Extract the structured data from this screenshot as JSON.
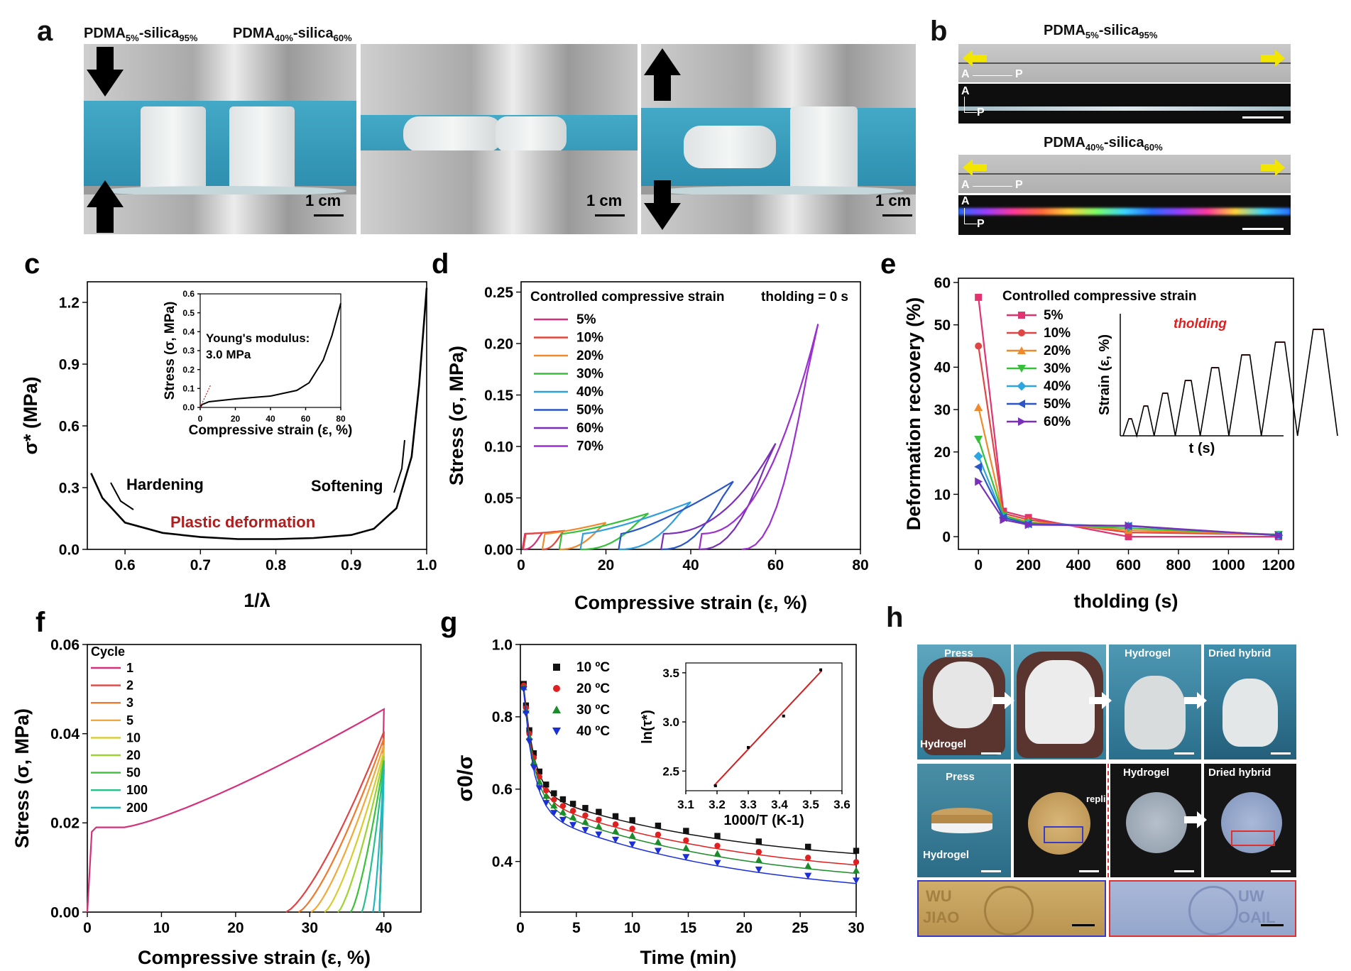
{
  "panels": {
    "a": {
      "label": "a",
      "left_sample_label": "PDMA5%-silica95%",
      "right_sample_label": "PDMA40%-silica60%",
      "scale_bars": [
        "1 cm",
        "1 cm",
        "1 cm"
      ]
    },
    "b": {
      "label": "b",
      "top_title": "PDMA5%-silica95%",
      "bottom_title": "PDMA40%-silica60%",
      "axis_A": "A",
      "axis_P": "P"
    },
    "h": {
      "label": "h",
      "texts": {
        "press": "Press",
        "hydrogel": "Hydrogel",
        "dried_hybrid": "Dried hybrid",
        "replicate": "replicate",
        "coin_text_1": "WU",
        "coin_text_2": "JIAO",
        "coin_text_3": "UW",
        "coin_text_4": "OAIL"
      }
    }
  },
  "chart_data": [
    {
      "id": "c",
      "panel_label": "c",
      "type": "line",
      "xlabel": "1/λ",
      "ylabel": "σ* (MPa)",
      "xlim": [
        0.55,
        1.0
      ],
      "ylim": [
        0,
        1.3
      ],
      "xticks": [
        "0.6",
        "0.7",
        "0.8",
        "0.9",
        "1.0"
      ],
      "yticks": [
        "0.0",
        "0.3",
        "0.6",
        "0.9",
        "1.2"
      ],
      "x": [
        0.555,
        0.57,
        0.6,
        0.65,
        0.7,
        0.75,
        0.8,
        0.85,
        0.9,
        0.93,
        0.96,
        0.98,
        0.99,
        1.0
      ],
      "y": [
        0.37,
        0.25,
        0.13,
        0.08,
        0.06,
        0.05,
        0.05,
        0.055,
        0.07,
        0.1,
        0.2,
        0.45,
        0.8,
        1.27
      ],
      "annotations": [
        "Hardening",
        "Softening",
        "Plastic deformation"
      ],
      "inset": {
        "xlabel": "Compressive strain (ε, %)",
        "ylabel": "Stress (σ, MPa)",
        "xlim": [
          0,
          80
        ],
        "ylim": [
          0,
          0.6
        ],
        "xticks": [
          "0",
          "20",
          "40",
          "60",
          "80"
        ],
        "yticks": [
          "0.0",
          "0.1",
          "0.2",
          "0.3",
          "0.4",
          "0.5",
          "0.6"
        ],
        "x": [
          0,
          1,
          5,
          20,
          40,
          55,
          62,
          70,
          75,
          80
        ],
        "y": [
          0,
          0.015,
          0.03,
          0.045,
          0.06,
          0.09,
          0.13,
          0.25,
          0.38,
          0.55
        ],
        "annotation_1": "Young's modulus:",
        "annotation_2": "3.0 MPa"
      }
    },
    {
      "id": "d",
      "panel_label": "d",
      "type": "line",
      "xlabel": "Compressive strain (ε, %)",
      "ylabel": "Stress (σ, MPa)",
      "xlim": [
        0,
        80
      ],
      "ylim": [
        0,
        0.26
      ],
      "xticks": [
        "0",
        "20",
        "40",
        "60",
        "80"
      ],
      "yticks": [
        "0.00",
        "0.05",
        "0.10",
        "0.15",
        "0.20",
        "0.25"
      ],
      "legend_title": "Controlled compressive strain",
      "corner_note": "tholding = 0 s",
      "series": [
        {
          "name": "5%",
          "color": "#d6307a",
          "strain_max": 5,
          "stress_max": 0.016,
          "residual": 0.5
        },
        {
          "name": "10%",
          "color": "#e0463c",
          "strain_max": 10,
          "stress_max": 0.018,
          "residual": 5
        },
        {
          "name": "20%",
          "color": "#ef8a2c",
          "strain_max": 20,
          "stress_max": 0.026,
          "residual": 9
        },
        {
          "name": "30%",
          "color": "#36c03a",
          "strain_max": 30,
          "stress_max": 0.035,
          "residual": 14
        },
        {
          "name": "40%",
          "color": "#2d9fe0",
          "strain_max": 40,
          "stress_max": 0.046,
          "residual": 23
        },
        {
          "name": "50%",
          "color": "#2a56c8",
          "strain_max": 50,
          "stress_max": 0.066,
          "residual": 33
        },
        {
          "name": "60%",
          "color": "#7a2fb8",
          "strain_max": 60,
          "stress_max": 0.103,
          "residual": 42
        },
        {
          "name": "70%",
          "color": "#9b2fd0",
          "strain_max": 70,
          "stress_max": 0.219,
          "residual": 52
        }
      ]
    },
    {
      "id": "e",
      "panel_label": "e",
      "type": "line",
      "xlabel": "tholding (s)",
      "ylabel": "Deformation recovery (%)",
      "xlim": [
        -80,
        1260
      ],
      "ylim": [
        -3,
        61
      ],
      "xticks": [
        "0",
        "200",
        "400",
        "600",
        "800",
        "1000",
        "1200"
      ],
      "yticks": [
        "0",
        "10",
        "20",
        "30",
        "40",
        "50",
        "60"
      ],
      "x": [
        0,
        100,
        200,
        600,
        1200
      ],
      "legend_title": "Controlled compressive strain",
      "series": [
        {
          "name": "5%",
          "color": "#e0336f",
          "marker": "square",
          "values": [
            56.5,
            6,
            4.5,
            0,
            0
          ]
        },
        {
          "name": "10%",
          "color": "#e04545",
          "marker": "circle",
          "values": [
            45,
            5.5,
            4,
            1,
            0.5
          ]
        },
        {
          "name": "20%",
          "color": "#ef8a2c",
          "marker": "triangle-up",
          "values": [
            30.5,
            5,
            3.5,
            1.5,
            0.5
          ]
        },
        {
          "name": "30%",
          "color": "#36c03a",
          "marker": "triangle-down",
          "values": [
            23,
            5,
            3.2,
            2,
            0.5
          ]
        },
        {
          "name": "40%",
          "color": "#2da6e0",
          "marker": "diamond",
          "values": [
            19,
            4.5,
            3,
            2.5,
            0.3
          ]
        },
        {
          "name": "50%",
          "color": "#2a56c8",
          "marker": "triangle-left",
          "values": [
            16.5,
            4.5,
            3,
            2.5,
            0.3
          ]
        },
        {
          "name": "60%",
          "color": "#7a2fb8",
          "marker": "triangle-right",
          "values": [
            13,
            4,
            2.8,
            2.6,
            0.3
          ]
        }
      ],
      "inset": {
        "xlabel": "t (s)",
        "ylabel": "Strain (ε, %)",
        "annotation": "tholding"
      }
    },
    {
      "id": "f",
      "panel_label": "f",
      "type": "line",
      "xlabel": "Compressive strain (ε, %)",
      "ylabel": "Stress (σ, MPa)",
      "xlim": [
        0,
        45
      ],
      "ylim": [
        0,
        0.06
      ],
      "xticks": [
        "0",
        "10",
        "20",
        "30",
        "40"
      ],
      "yticks": [
        "0.00",
        "0.02",
        "0.04",
        "0.06"
      ],
      "legend_title": "Cycle",
      "series": [
        {
          "name": "1",
          "color": "#d6307a",
          "residual": 0,
          "peak": 0.0455
        },
        {
          "name": "2",
          "color": "#e04545",
          "residual": 26.8,
          "peak": 0.0405
        },
        {
          "name": "3",
          "color": "#ef7a2c",
          "residual": 28.5,
          "peak": 0.039
        },
        {
          "name": "5",
          "color": "#f0a93a",
          "residual": 30.2,
          "peak": 0.0375
        },
        {
          "name": "10",
          "color": "#d8cc30",
          "residual": 32,
          "peak": 0.036
        },
        {
          "name": "20",
          "color": "#9dd232",
          "residual": 33.8,
          "peak": 0.035
        },
        {
          "name": "50",
          "color": "#3cc03a",
          "residual": 35.5,
          "peak": 0.034
        },
        {
          "name": "100",
          "color": "#26c08a",
          "residual": 37,
          "peak": 0.033
        },
        {
          "name": "200",
          "color": "#20b8c0",
          "residual": 38.5,
          "peak": 0.032
        }
      ]
    },
    {
      "id": "g",
      "panel_label": "g",
      "type": "scatter",
      "xlabel": "Time (min)",
      "ylabel": "σ0/σ",
      "xlim": [
        0,
        30
      ],
      "ylim": [
        0.26,
        1.0
      ],
      "xticks": [
        "0",
        "5",
        "10",
        "15",
        "20",
        "25",
        "30"
      ],
      "yticks": [
        "0.4",
        "0.6",
        "0.8",
        "1.0"
      ],
      "series": [
        {
          "name": "10 ºC",
          "color": "#111111",
          "marker": "square",
          "end": 0.38,
          "knee": 0.6
        },
        {
          "name": "20 ºC",
          "color": "#e02020",
          "marker": "circle",
          "end": 0.345,
          "knee": 0.585
        },
        {
          "name": "30 ºC",
          "color": "#1c8c2a",
          "marker": "triangle-up",
          "end": 0.32,
          "knee": 0.57
        },
        {
          "name": "40 ºC",
          "color": "#1a2fd8",
          "marker": "triangle-down",
          "end": 0.29,
          "knee": 0.55
        }
      ],
      "inset": {
        "xlabel": "1000/T (K-1)",
        "ylabel": "ln(τ*)",
        "xlim": [
          3.1,
          3.6
        ],
        "ylim": [
          2.3,
          3.6
        ],
        "xticks": [
          "3.1",
          "3.2",
          "3.3",
          "3.4",
          "3.5",
          "3.6"
        ],
        "yticks": [
          "2.5",
          "3.0",
          "3.5"
        ],
        "x": [
          3.195,
          3.3,
          3.413,
          3.532
        ],
        "y": [
          2.35,
          2.74,
          3.06,
          3.53
        ]
      }
    }
  ]
}
